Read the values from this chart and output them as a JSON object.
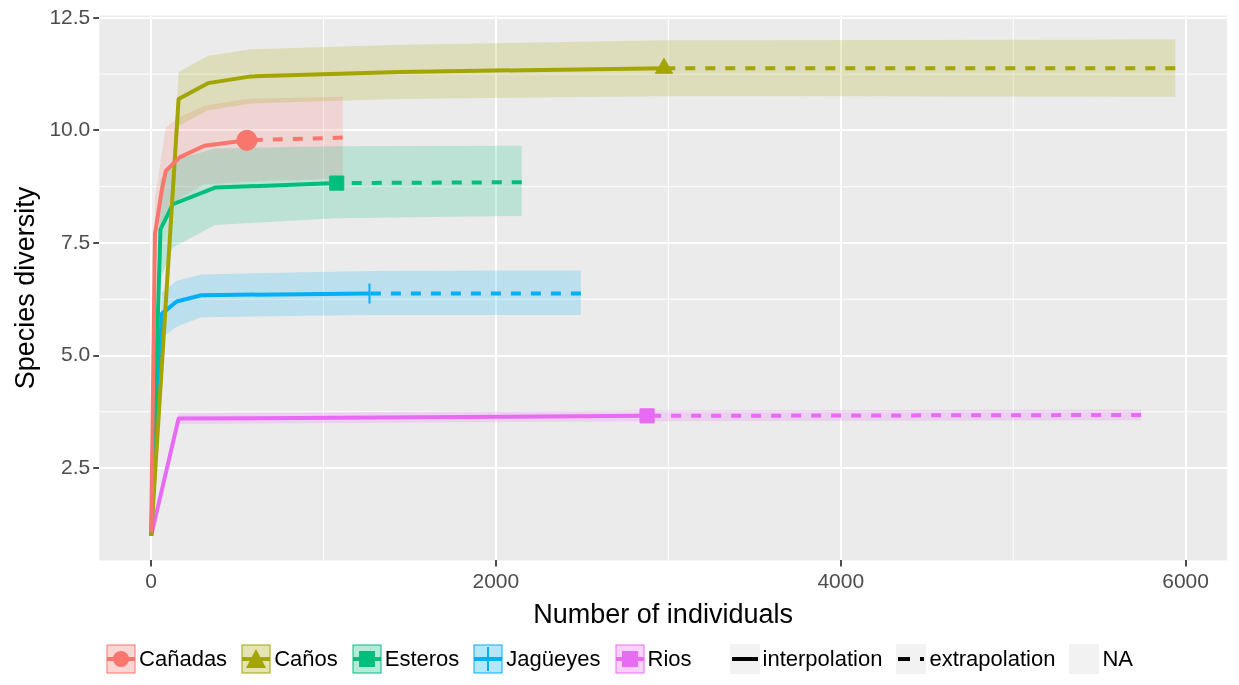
{
  "chart_data": {
    "type": "line",
    "xlabel": "Number of individuals",
    "ylabel": "Species diversity",
    "xlim": [
      -300,
      6240
    ],
    "xticks": [
      0,
      2000,
      4000,
      6000
    ],
    "ylim": [
      0.45,
      12.55
    ],
    "yticks": [
      {
        "value": 2.5,
        "label": "2.5"
      },
      {
        "value": 5,
        "label": "5.0"
      },
      {
        "value": 7.5,
        "label": "7.5"
      },
      {
        "value": 10,
        "label": "10.0"
      },
      {
        "value": 12.5,
        "label": "12.5"
      }
    ],
    "grid": true,
    "legend": "bottom",
    "annotations": [
      "interpolation",
      "extrapolation",
      "NA"
    ],
    "series": [
      {
        "line_style": "solid",
        "color": "#f8766d",
        "x": [
          1,
          23,
          63,
          86,
          166,
          309,
          556
        ],
        "values": [
          1.07,
          7.7,
          8.68,
          9.1,
          9.4,
          9.66,
          9.78
        ],
        "lower": [
          1.07,
          6.9,
          7.9,
          8.2,
          8.5,
          8.8,
          8.86
        ],
        "upper": [
          1.07,
          8.5,
          9.5,
          10.07,
          10.3,
          10.55,
          10.7
        ]
      },
      {
        "line_style": "dashed",
        "color": "#f8766d",
        "x": [
          556,
          1112
        ],
        "values": [
          9.78,
          9.84
        ],
        "lower": [
          8.86,
          8.93
        ],
        "upper": [
          10.7,
          10.75
        ]
      },
      {
        "type": "scatter",
        "name": "Cañadas",
        "marker": "circle",
        "color": "#f8766d",
        "x": [
          556
        ],
        "values": [
          9.78
        ]
      },
      {
        "line_style": "solid",
        "color": "#a3a500",
        "x": [
          1,
          160,
          330,
          580,
          1440,
          2975
        ],
        "values": [
          1.0,
          10.7,
          11.05,
          11.2,
          11.3,
          11.38
        ],
        "lower": [
          1.0,
          10.1,
          10.45,
          10.6,
          10.7,
          10.76
        ],
        "upper": [
          1.0,
          11.3,
          11.66,
          11.8,
          11.9,
          12.0
        ]
      },
      {
        "line_style": "dashed",
        "color": "#a3a500",
        "x": [
          2975,
          5940
        ],
        "values": [
          11.38,
          11.38
        ],
        "lower": [
          10.76,
          10.75
        ],
        "upper": [
          12.0,
          12.02
        ]
      },
      {
        "type": "scatter",
        "name": "Caños",
        "marker": "triangle",
        "color": "#a3a500",
        "x": [
          2975
        ],
        "values": [
          11.38
        ]
      },
      {
        "line_style": "solid",
        "color": "#00bf7d",
        "x": [
          1,
          55,
          126,
          372,
          1077
        ],
        "values": [
          1.0,
          7.8,
          8.36,
          8.73,
          8.83
        ],
        "lower": [
          1.0,
          6.7,
          7.4,
          7.9,
          8.05
        ],
        "upper": [
          1.0,
          8.9,
          9.34,
          9.6,
          9.65
        ]
      },
      {
        "line_style": "dashed",
        "color": "#00bf7d",
        "x": [
          1077,
          2150
        ],
        "values": [
          8.83,
          8.85
        ],
        "lower": [
          8.05,
          8.1
        ],
        "upper": [
          9.65,
          9.66
        ]
      },
      {
        "type": "scatter",
        "name": "Esteros",
        "marker": "square",
        "color": "#00bf7d",
        "x": [
          1077
        ],
        "values": [
          8.83
        ]
      },
      {
        "line_style": "solid",
        "color": "#00b0f6",
        "x": [
          1,
          63,
          149,
          292,
          1267
        ],
        "values": [
          1.0,
          5.93,
          6.2,
          6.34,
          6.38
        ],
        "lower": [
          1.0,
          5.4,
          5.64,
          5.85,
          5.9
        ],
        "upper": [
          1.0,
          6.4,
          6.66,
          6.8,
          6.88
        ]
      },
      {
        "line_style": "dashed",
        "color": "#00b0f6",
        "x": [
          1267,
          2493
        ],
        "values": [
          6.38,
          6.38
        ],
        "lower": [
          5.9,
          5.9
        ],
        "upper": [
          6.88,
          6.89
        ]
      },
      {
        "type": "scatter",
        "name": "Jagüeyes",
        "marker": "cross",
        "color": "#00b0f6",
        "x": [
          1267
        ],
        "values": [
          6.38
        ]
      },
      {
        "line_style": "solid",
        "color": "#e76bf3",
        "x": [
          1,
          160,
          2877
        ],
        "values": [
          1.0,
          3.6,
          3.66
        ],
        "lower": [
          1.0,
          3.48,
          3.54
        ],
        "upper": [
          1.0,
          3.72,
          3.78
        ]
      },
      {
        "line_style": "dashed",
        "color": "#e76bf3",
        "x": [
          2877,
          5742
        ],
        "values": [
          3.66,
          3.68
        ],
        "lower": [
          3.54,
          3.56
        ],
        "upper": [
          3.78,
          3.8
        ]
      },
      {
        "type": "scatter",
        "name": "Rios",
        "marker": "square",
        "color": "#e76bf3",
        "x": [
          2877
        ],
        "values": [
          3.66
        ]
      }
    ]
  }
}
